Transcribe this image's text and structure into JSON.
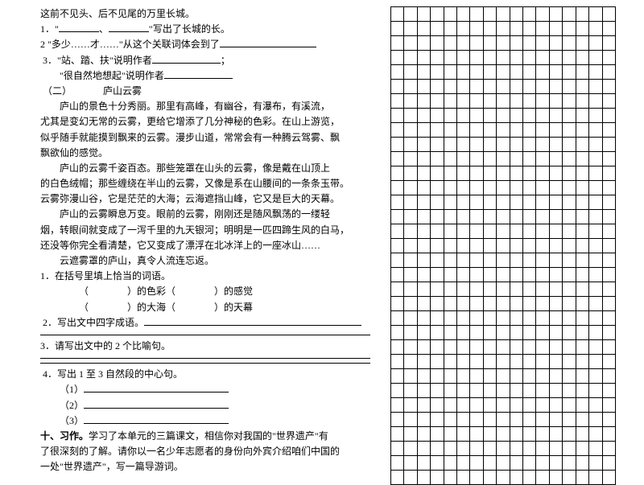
{
  "left": {
    "l0": "这前不见头、后不见尾的万里长城。",
    "l1a": "1．\"",
    "l1b": "、",
    "l1c": "\"写出了长城的长。",
    "l2a": "2 \"多少……才……\"从这个关联词体会到了",
    "l3a": "3．\"站、踏、扶\"说明作者",
    "l3b": "；",
    "l4a": "\"很自然地想起\"说明作者",
    "sec2_head": "（二）",
    "sec2_title": "庐山云雾",
    "p1a": "庐山的景色十分秀丽。那里有高峰，有幽谷，有瀑布，有溪流，",
    "p1b": "尤其是变幻无常的云雾，更给它增添了几分神秘的色彩。在山上游览，",
    "p1c": "似乎随手就能摸到飘来的云雾。漫步山道，常常会有一种腾云驾雾、飘",
    "p1d": "飘欲仙的感觉。",
    "p2a": "庐山的云雾千姿百态。那些笼罩在山头的云雾，像是戴在山顶上",
    "p2b": "的白色绒帽；那些缠绕在半山的云雾，又像是系在山腰间的一条条玉带。",
    "p2c": "云雾弥漫山谷，它是茫茫的大海；云海遮挡山峰，它又是巨大的天幕。",
    "p3a": "庐山的云雾瞬息万变。眼前的云雾，刚刚还是随风飘荡的一缕轻",
    "p3b": "烟，转眼间就变成了一泻千里的九天银河；明明是一匹四蹄生风的白马，",
    "p3c": "还没等你完全看清楚，它又变成了漂浮在北冰洋上的一座冰山……",
    "p4": "云遮雾罩的庐山，真令人流连忘返。",
    "q1": "1．在括号里填上恰当的词语。",
    "q1a": "（　　　　）的色彩（　　　　）的感觉",
    "q1b": "（　　　　）的大海（　　　　）的天幕",
    "q2": "2．写出文中四字成语。",
    "q3": "3．请写出文中的 2 个比喻句。",
    "q4": "4．写出 1 至 3 自然段的中心句。",
    "q4a": "（1）",
    "q4b": "（2）",
    "q4c": "（3）",
    "ten": "十、习作。",
    "z1": "学习了本单元的三篇课文，相信你对我国的\"世界遗产\"有",
    "z2": "了很深刻的了解。请你以一名少年志愿者的身份向外宾介绍咱们中国的",
    "z3": "一处\"世界遗产\"，写一篇导游词。"
  },
  "grid": {
    "rows": 33,
    "cols": 17
  }
}
